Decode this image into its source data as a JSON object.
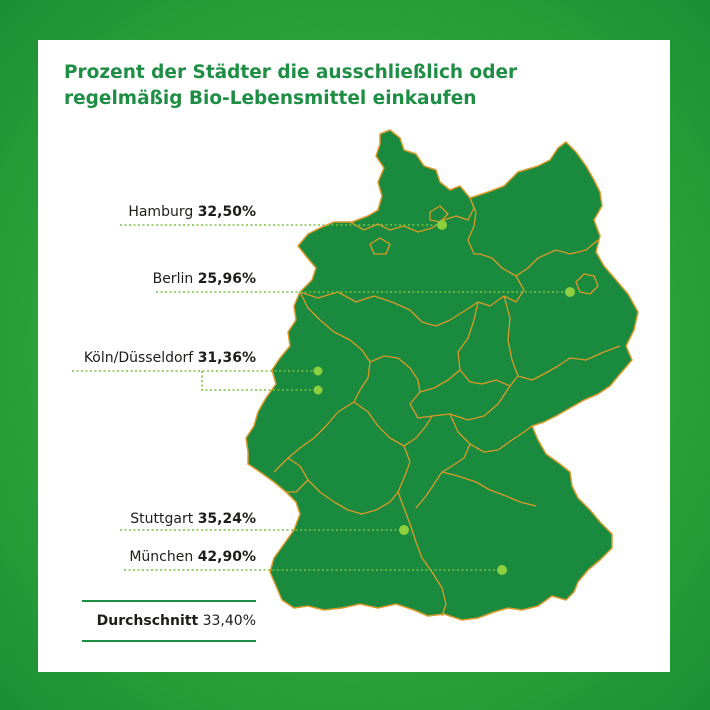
{
  "title_lines": [
    "Prozent der Städter die ausschließlich oder",
    "regelmäßig Bio-Lebensmittel einkaufen"
  ],
  "cities": [
    {
      "name": "Hamburg",
      "value": "32,50%"
    },
    {
      "name": "Berlin",
      "value": "25,96%"
    },
    {
      "name": "Köln/Düsseldorf",
      "value": "31,36%"
    },
    {
      "name": "Stuttgart",
      "value": "35,24%"
    },
    {
      "name": "München",
      "value": "42,90%"
    }
  ],
  "average": {
    "label": "Durchschnitt",
    "value": "33,40%"
  },
  "colors": {
    "background": "#2ea63a",
    "map_fill": "#1a8a3e",
    "state_border": "#d99a2b",
    "leader_line": "#7cc242",
    "marker": "#8ccf3f",
    "title": "#1f8e45"
  }
}
